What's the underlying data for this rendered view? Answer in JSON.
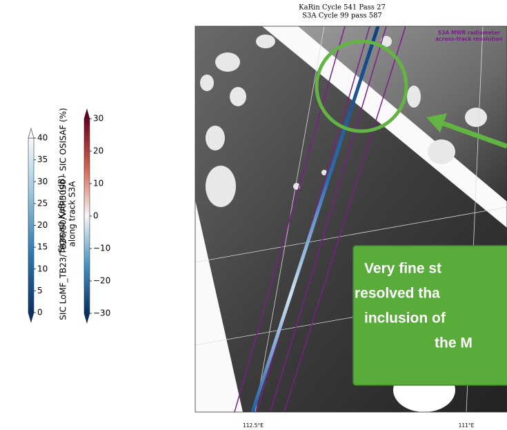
{
  "title": [
    "KaRin Cycle 541 Pass 27",
    "S3A Cycle 99 pass 587"
  ],
  "colorbars": [
    {
      "label": [
        "Sigma0 KaRin (dB)"
      ],
      "lim": [
        0,
        40
      ],
      "ticks": [
        0,
        5,
        10,
        15,
        20,
        25,
        30,
        35,
        40
      ]
    },
    {
      "label": [
        "SIC LoMF_TB23/TB36/S0/VAR50S0 - SIC OSISAF (%)",
        "along track S3A"
      ],
      "lim": [
        -30,
        30
      ],
      "ticks": [
        {
          "value": -30,
          "label": "−30"
        },
        {
          "value": -20,
          "label": "−20"
        },
        {
          "value": -10,
          "label": "−10"
        },
        0,
        10,
        20,
        30
      ]
    }
  ],
  "map": {
    "inset_label": [
      "S3A MWR radiometer",
      "across-track resolution"
    ],
    "lon_labels": [
      "112.5°E",
      "111°E"
    ]
  },
  "callout": {
    "lines": [
      "Very fine st",
      "resolved tha",
      "inclusion of",
      "the M"
    ]
  }
}
